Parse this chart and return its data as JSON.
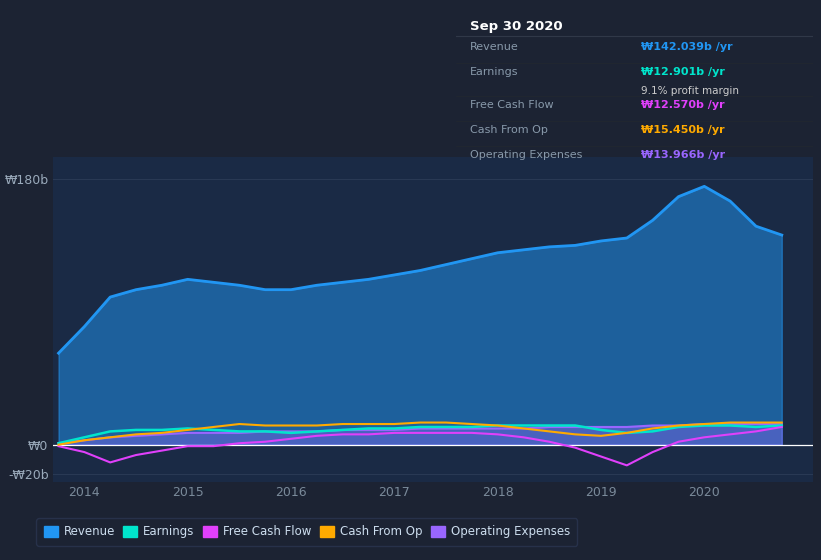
{
  "bg_color": "#1c2333",
  "plot_bg_color": "#1a2a45",
  "tooltip_bg": "#0a0d14",
  "grid_color": "#2a3a55",
  "ylim": [
    -25,
    195
  ],
  "series": {
    "Revenue": {
      "color": "#2196f3",
      "fill_alpha": 0.5,
      "linewidth": 2.0
    },
    "Earnings": {
      "color": "#00e5cc",
      "linewidth": 1.8
    },
    "Free Cash Flow": {
      "color": "#e040fb",
      "linewidth": 1.5
    },
    "Cash From Op": {
      "color": "#ffaa00",
      "linewidth": 1.5
    },
    "Operating Expenses": {
      "color": "#9966ff",
      "fill_alpha": 0.35,
      "linewidth": 1.5
    }
  },
  "legend_items": [
    {
      "label": "Revenue",
      "color": "#2196f3"
    },
    {
      "label": "Earnings",
      "color": "#00e5cc"
    },
    {
      "label": "Free Cash Flow",
      "color": "#e040fb"
    },
    {
      "label": "Cash From Op",
      "color": "#ffaa00"
    },
    {
      "label": "Operating Expenses",
      "color": "#9966ff"
    }
  ],
  "tooltip": {
    "date": "Sep 30 2020",
    "rows": [
      {
        "label": "Revenue",
        "value": "₩142.039b /yr",
        "color": "#2196f3",
        "note": null
      },
      {
        "label": "Earnings",
        "value": "₩12.901b /yr",
        "color": "#00e5cc",
        "note": "9.1% profit margin"
      },
      {
        "label": "Free Cash Flow",
        "value": "₩12.570b /yr",
        "color": "#e040fb",
        "note": null
      },
      {
        "label": "Cash From Op",
        "value": "₩15.450b /yr",
        "color": "#ffaa00",
        "note": null
      },
      {
        "label": "Operating Expenses",
        "value": "₩13.966b /yr",
        "color": "#9966ff",
        "note": null
      }
    ]
  },
  "x_data": [
    2013.75,
    2014.0,
    2014.25,
    2014.5,
    2014.75,
    2015.0,
    2015.25,
    2015.5,
    2015.75,
    2016.0,
    2016.25,
    2016.5,
    2016.75,
    2017.0,
    2017.25,
    2017.5,
    2017.75,
    2018.0,
    2018.25,
    2018.5,
    2018.75,
    2019.0,
    2019.25,
    2019.5,
    2019.75,
    2020.0,
    2020.25,
    2020.5,
    2020.75
  ],
  "revenue": [
    62,
    80,
    100,
    105,
    108,
    112,
    110,
    108,
    105,
    105,
    108,
    110,
    112,
    115,
    118,
    122,
    126,
    130,
    132,
    134,
    135,
    138,
    140,
    152,
    168,
    175,
    165,
    148,
    142
  ],
  "earnings": [
    1,
    5,
    9,
    10,
    10,
    11,
    10,
    9,
    9,
    8,
    9,
    10,
    11,
    11,
    12,
    12,
    12,
    13,
    13,
    13,
    13,
    10,
    8,
    9,
    12,
    13,
    13,
    12,
    13
  ],
  "free_cash_flow": [
    -1,
    -5,
    -12,
    -7,
    -4,
    -1,
    -1,
    1,
    2,
    4,
    6,
    7,
    7,
    8,
    8,
    8,
    8,
    7,
    5,
    2,
    -2,
    -8,
    -14,
    -5,
    2,
    5,
    7,
    9,
    12
  ],
  "cash_from_op": [
    0,
    3,
    5,
    7,
    8,
    10,
    12,
    14,
    13,
    13,
    13,
    14,
    14,
    14,
    15,
    15,
    14,
    13,
    11,
    9,
    7,
    6,
    8,
    11,
    13,
    14,
    15,
    15,
    15
  ],
  "operating_expenses": [
    1,
    3,
    5,
    6,
    7,
    8,
    8,
    8,
    9,
    9,
    9,
    10,
    10,
    10,
    11,
    11,
    11,
    11,
    11,
    12,
    12,
    12,
    12,
    13,
    13,
    14,
    14,
    14,
    14
  ],
  "xticks": [
    2014.0,
    2015.0,
    2016.0,
    2017.0,
    2018.0,
    2019.0,
    2020.0
  ],
  "xtick_labels": [
    "2014",
    "2015",
    "2016",
    "2017",
    "2018",
    "2019",
    "2020"
  ],
  "ytick_vals": [
    -20,
    0,
    180
  ],
  "ytick_labels": [
    "-₩20b",
    "₩0",
    "₩180b"
  ]
}
